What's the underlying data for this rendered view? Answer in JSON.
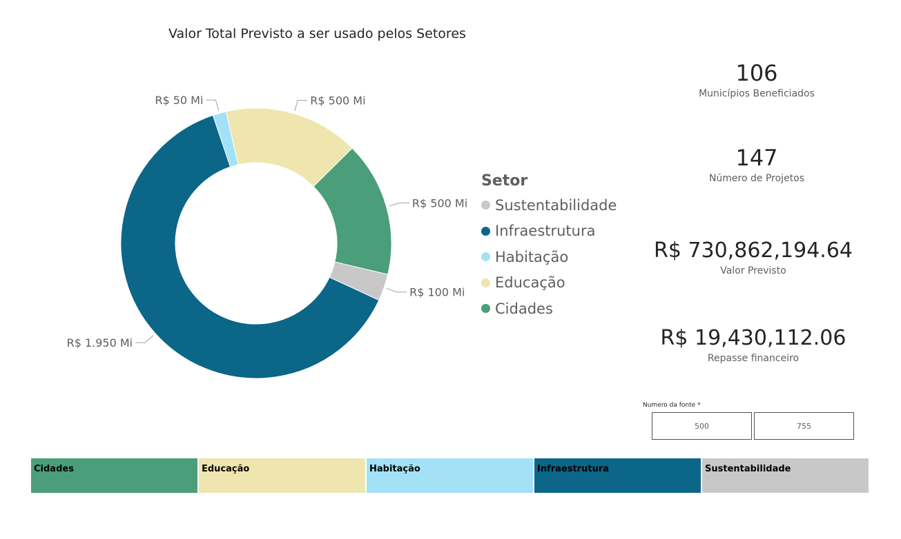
{
  "chart_data": {
    "type": "pie",
    "title": "Valor Total Previsto a ser usado pelos Setores",
    "legend_title": "Setor",
    "legend_position": "right",
    "slices": [
      {
        "name": "Sustentabilidade",
        "value": 100,
        "label": "R$ 100 Mi",
        "color": "#c8c8c8"
      },
      {
        "name": "Infraestrutura",
        "value": 1950,
        "label": "R$ 1.950 Mi",
        "color": "#0b6688"
      },
      {
        "name": "Habitação",
        "value": 50,
        "label": "R$ 50 Mi",
        "color": "#a3e1f6"
      },
      {
        "name": "Educação",
        "value": 500,
        "label": "R$ 500 Mi",
        "color": "#efe5ae"
      },
      {
        "name": "Cidades",
        "value": 500,
        "label": "R$ 500 Mi",
        "color": "#4a9e79"
      }
    ]
  },
  "legend": {
    "title": "Setor",
    "items": [
      {
        "label": "Sustentabilidade",
        "color": "#c8c8c8"
      },
      {
        "label": "Infraestrutura",
        "color": "#0b6688"
      },
      {
        "label": "Habitação",
        "color": "#a3e1f6"
      },
      {
        "label": "Educação",
        "color": "#efe5ae"
      },
      {
        "label": "Cidades",
        "color": "#4a9e79"
      }
    ]
  },
  "kpis": {
    "municipios": {
      "value": "106",
      "label": "Municípios Beneficiados"
    },
    "projetos": {
      "value": "147",
      "label": "Número de Projetos"
    },
    "valor_previsto": {
      "value": "R$ 730,862,194.64",
      "label": "Valor Previsto"
    },
    "repasse": {
      "value": "R$ 19,430,112.06",
      "label": "Repasse financeiro"
    }
  },
  "slicer": {
    "title": "Numero da fonte *",
    "options": [
      "500",
      "755"
    ]
  },
  "sector_bar": {
    "cells": [
      {
        "label": "Cidades",
        "color": "#4a9e79"
      },
      {
        "label": "Educação",
        "color": "#efe5ae"
      },
      {
        "label": "Habitação",
        "color": "#a3e1f6"
      },
      {
        "label": "Infraestrutura",
        "color": "#0b6688"
      },
      {
        "label": "Sustentabilidade",
        "color": "#c8c8c8"
      }
    ]
  }
}
